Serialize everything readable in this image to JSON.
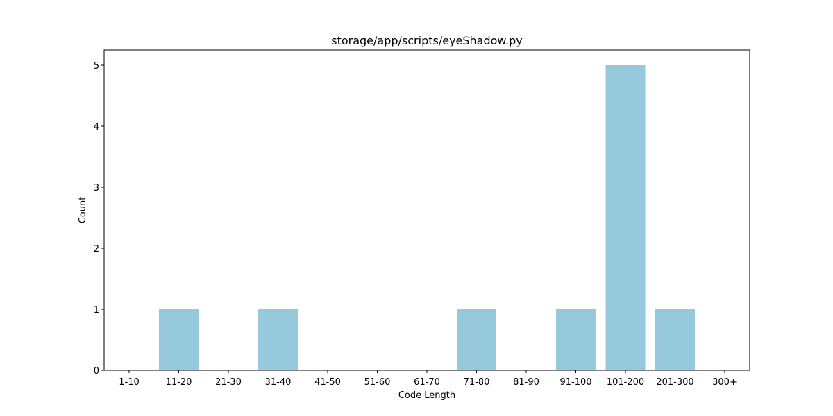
{
  "chart_data": {
    "type": "bar",
    "title": "storage/app/scripts/eyeShadow.py",
    "xlabel": "Code Length",
    "ylabel": "Count",
    "categories": [
      "1-10",
      "11-20",
      "21-30",
      "31-40",
      "41-50",
      "51-60",
      "61-70",
      "71-80",
      "81-90",
      "91-100",
      "101-200",
      "201-300",
      "300+"
    ],
    "values": [
      0,
      1,
      0,
      1,
      0,
      0,
      0,
      1,
      0,
      1,
      5,
      1,
      0
    ],
    "ylim": [
      0,
      5.25
    ],
    "yticks": [
      "0",
      "1",
      "2",
      "3",
      "4",
      "5"
    ],
    "grid": false,
    "bar_color": "#96c9dc"
  }
}
